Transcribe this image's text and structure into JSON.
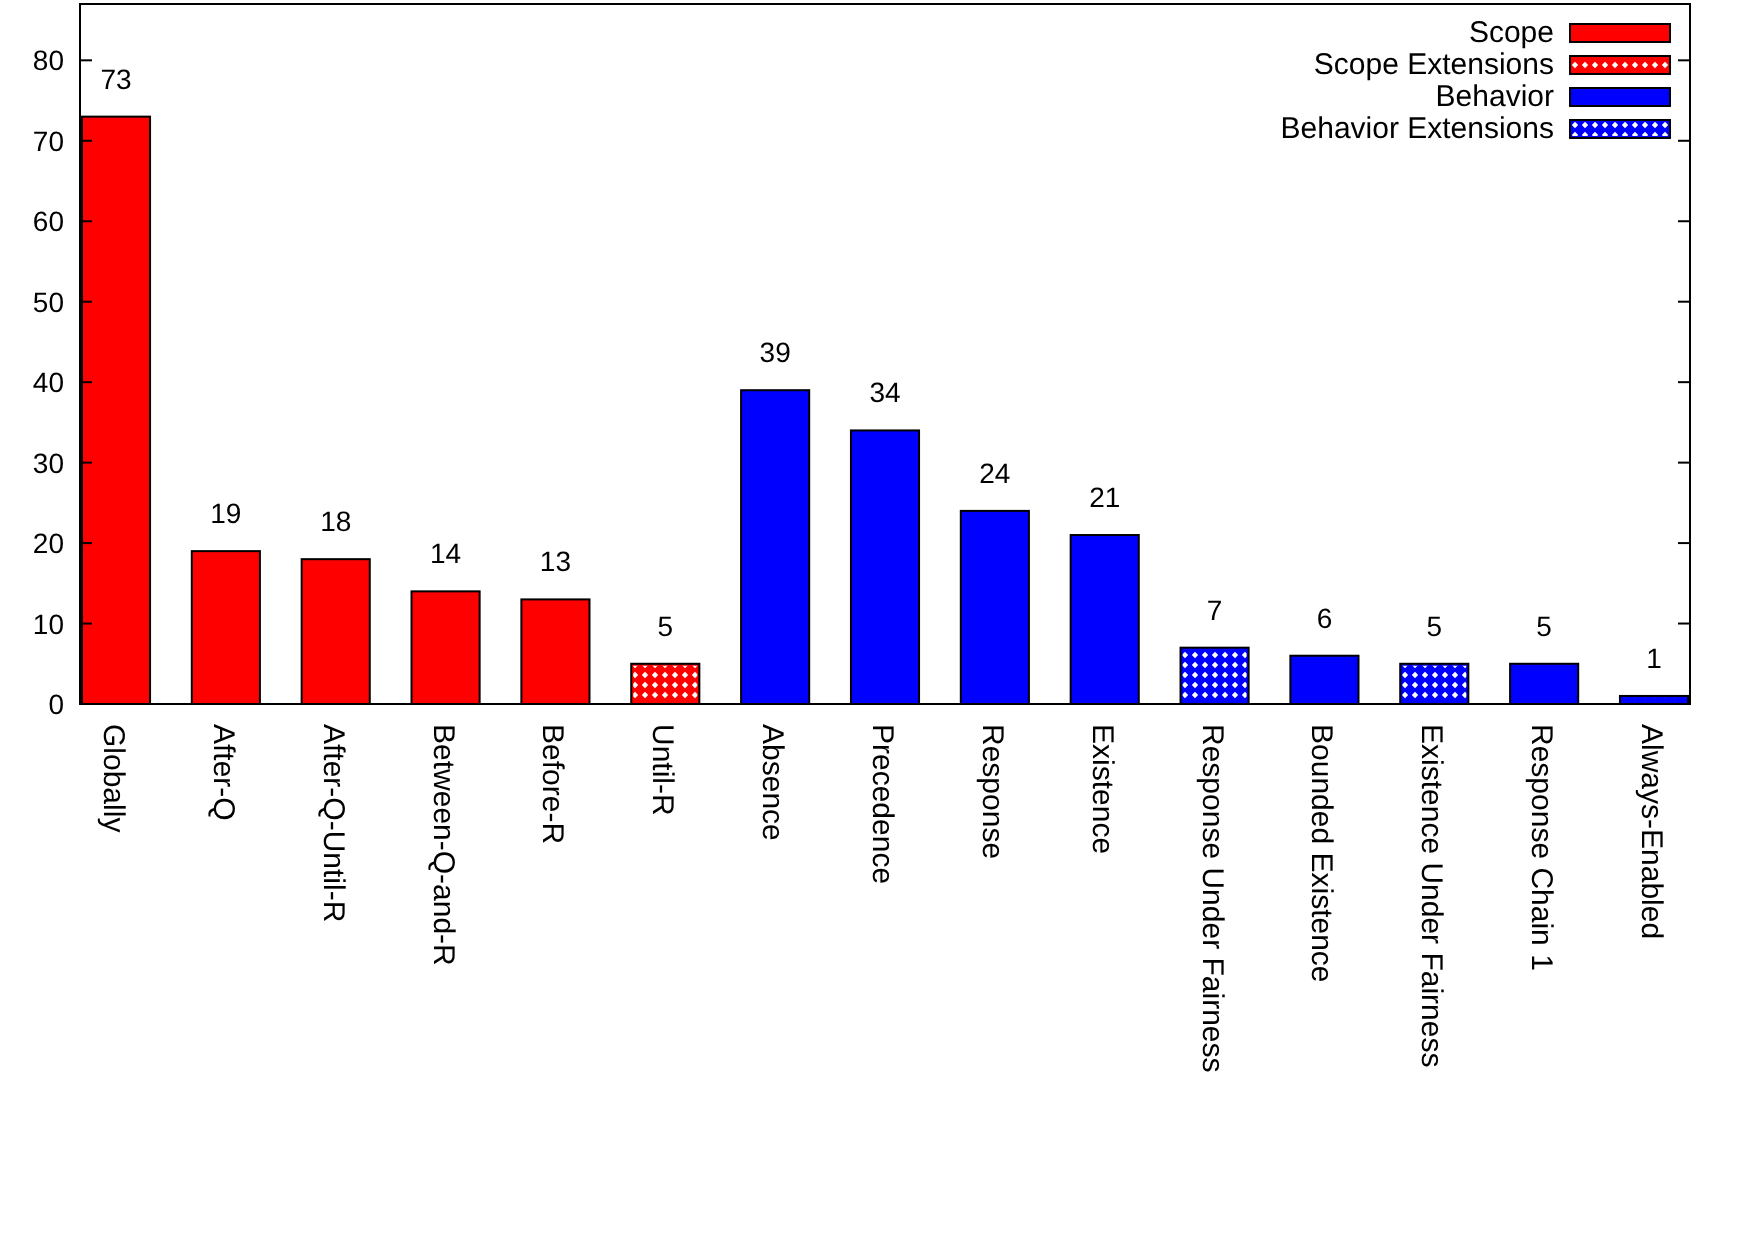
{
  "chart_data": {
    "type": "bar",
    "stacked": true,
    "categories": [
      "Globally",
      "After-Q",
      "After-Q-Until-R",
      "Between-Q-and-R",
      "Before-R",
      "Until-R",
      "Absence",
      "Precedence",
      "Response",
      "Existence",
      "Response Under Fairness",
      "Bounded Existence",
      "Existence Under Fairness",
      "Response Chain 1",
      "Always-Enabled"
    ],
    "series": [
      {
        "name": "Scope",
        "color": "#ff0000",
        "values": [
          73,
          19,
          18,
          14,
          13,
          null,
          null,
          null,
          null,
          null,
          null,
          null,
          null,
          null,
          null
        ]
      },
      {
        "name": "Scope Extensions",
        "color": "#ff0000",
        "values": [
          null,
          null,
          null,
          null,
          null,
          5,
          null,
          null,
          null,
          null,
          null,
          null,
          null,
          null,
          null
        ]
      },
      {
        "name": "Behavior",
        "color": "#0000ff",
        "values": [
          null,
          null,
          null,
          null,
          null,
          null,
          39,
          34,
          24,
          21,
          null,
          6,
          null,
          5,
          null
        ]
      },
      {
        "name": "Behavior Extensions",
        "color": "#0000ff",
        "values": [
          null,
          null,
          null,
          null,
          null,
          null,
          null,
          null,
          null,
          null,
          7,
          null,
          5,
          null,
          1
        ]
      }
    ],
    "ylim": [
      0,
      87
    ],
    "yticks": [
      0,
      10,
      20,
      30,
      40,
      50,
      60,
      70,
      80
    ],
    "data_labels": true,
    "legend": "top right",
    "grid": false
  }
}
